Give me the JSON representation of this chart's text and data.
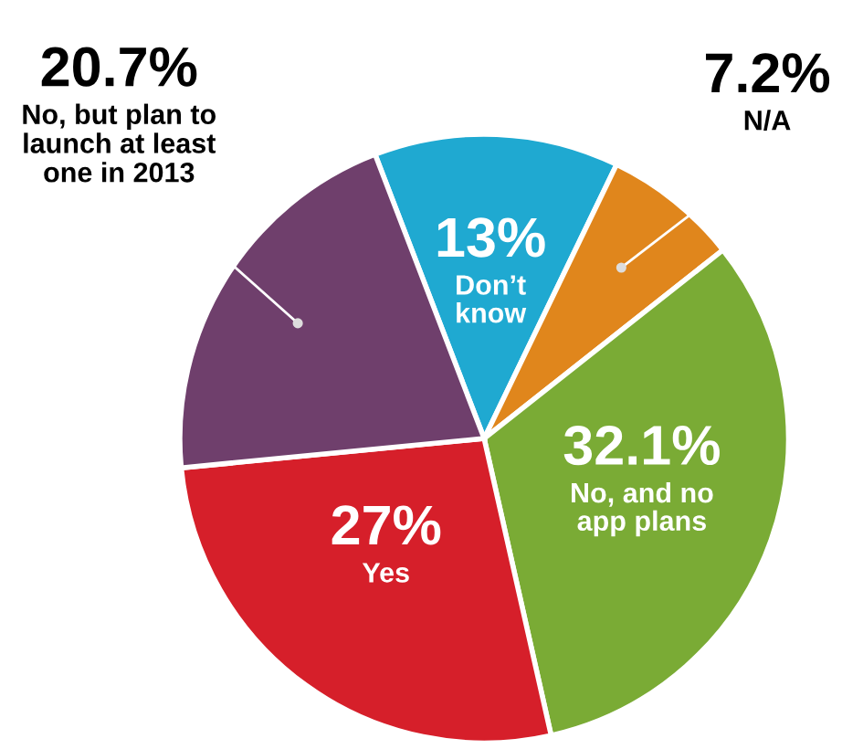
{
  "chart_data": {
    "type": "pie",
    "categories": [
      "Don’t\nknow",
      "N/A",
      "No, and no\napp plans",
      "Yes",
      "No, but plan to\nlaunch at least\none in 2013"
    ],
    "values": [
      13,
      7.2,
      32.1,
      27,
      20.7
    ],
    "value_labels": [
      "13%",
      "7.2%",
      "32.1%",
      "27%",
      "20.7%"
    ],
    "colors": [
      "#1fa9d1",
      "#e0861c",
      "#7aab35",
      "#d61f2a",
      "#6f3f6c"
    ],
    "legend": false
  }
}
